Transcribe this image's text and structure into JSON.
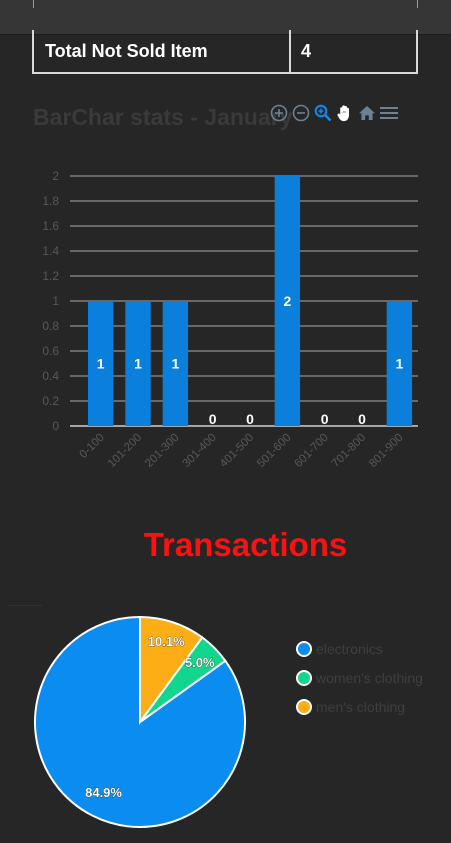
{
  "table": {
    "row_label": "Total Not Sold Item",
    "row_value": "4"
  },
  "bar_section": {
    "title": "BarChar stats - January",
    "toolbar": [
      {
        "id": "zoom-in",
        "icon": "zoom-in-icon"
      },
      {
        "id": "zoom-out",
        "icon": "zoom-out-icon"
      },
      {
        "id": "selection-zoom",
        "icon": "magnifier-icon"
      },
      {
        "id": "pan",
        "icon": "hand-pan-icon"
      },
      {
        "id": "reset",
        "icon": "home-icon"
      },
      {
        "id": "menu",
        "icon": "hamburger-menu-icon"
      }
    ]
  },
  "chart_data": [
    {
      "type": "bar",
      "title": "BarChar stats - January",
      "categories": [
        "0-100",
        "101-200",
        "201-300",
        "301-400",
        "401-500",
        "501-600",
        "601-700",
        "701-800",
        "801-900"
      ],
      "values": [
        1,
        1,
        1,
        0,
        0,
        2,
        0,
        0,
        1
      ],
      "ylim": [
        0,
        2
      ],
      "yticks": [
        "0",
        "0.2",
        "0.4",
        "0.6",
        "0.8",
        "1",
        "1.2",
        "1.4",
        "1.6",
        "1.8",
        "2"
      ],
      "grid": true,
      "bar_color": "#0b7fdc"
    },
    {
      "type": "pie",
      "title": "Transactions",
      "labels": [
        "electronics",
        "women's clothing",
        "men's clothing"
      ],
      "values": [
        84.9,
        5.0,
        10.1
      ],
      "value_labels": [
        "84.9%",
        "5.0%",
        "10.1%"
      ],
      "colors": [
        "#0a8cf0",
        "#12d68e",
        "#fdae17"
      ],
      "legend": "right"
    }
  ],
  "transactions": {
    "title": "Transactions"
  }
}
